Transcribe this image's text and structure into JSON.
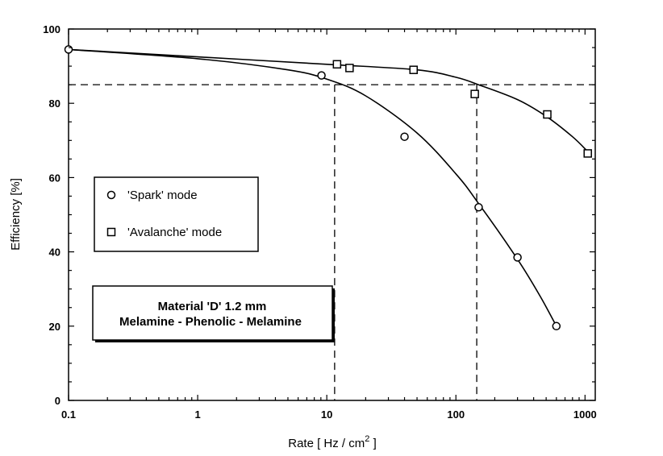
{
  "chart_data": {
    "type": "scatter",
    "x_scale": "log",
    "xlim": [
      0.1,
      1200
    ],
    "ylim": [
      0,
      100
    ],
    "grid": false,
    "xlabel": "Rate [ Hz / cm",
    "xlabel_sup": "2",
    "xlabel_end": " ]",
    "ylabel": "Efficiency [%]",
    "x_ticks": [
      0.1,
      1,
      10,
      100,
      1000
    ],
    "x_tick_labels": [
      "0.1",
      "1",
      "10",
      "100",
      "1000"
    ],
    "y_ticks": [
      0,
      20,
      40,
      60,
      80,
      100
    ],
    "y_tick_labels": [
      "0",
      "20",
      "40",
      "60",
      "80",
      "100"
    ],
    "series": [
      {
        "name": "'Spark' mode",
        "marker": "circle",
        "points": [
          [
            0.1,
            94.5
          ],
          [
            9.1,
            87.5
          ],
          [
            40,
            71
          ],
          [
            150,
            52
          ],
          [
            300,
            38.5
          ],
          [
            600,
            20
          ]
        ]
      },
      {
        "name": "'Avalanche' mode",
        "marker": "square",
        "points": [
          [
            12,
            90.5
          ],
          [
            15,
            89.5
          ],
          [
            47,
            89
          ],
          [
            140,
            82.5
          ],
          [
            510,
            77
          ],
          [
            1050,
            66.5
          ]
        ]
      }
    ],
    "fit_curves": [
      {
        "series": "'Spark' mode",
        "points": [
          [
            0.1,
            94.5
          ],
          [
            1,
            92
          ],
          [
            5,
            89
          ],
          [
            10,
            86.5
          ],
          [
            20,
            82
          ],
          [
            50,
            72
          ],
          [
            100,
            61
          ],
          [
            150,
            53
          ],
          [
            300,
            38
          ],
          [
            450,
            28
          ],
          [
            600,
            20
          ]
        ]
      },
      {
        "series": "'Avalanche' mode",
        "points": [
          [
            0.1,
            94.5
          ],
          [
            1,
            92.5
          ],
          [
            10,
            90.5
          ],
          [
            50,
            89
          ],
          [
            100,
            87
          ],
          [
            150,
            85
          ],
          [
            300,
            81
          ],
          [
            500,
            76.5
          ],
          [
            800,
            71
          ],
          [
            1050,
            67
          ]
        ]
      }
    ],
    "reference_lines": [
      {
        "orientation": "horizontal",
        "y": 85,
        "style": "dashed"
      },
      {
        "orientation": "vertical",
        "x": 11.5,
        "style": "dashed"
      },
      {
        "orientation": "vertical",
        "x": 145,
        "style": "dashed"
      }
    ],
    "legend": {
      "placement": "left-middle",
      "entries": [
        {
          "marker": "circle",
          "label": "'Spark' mode"
        },
        {
          "marker": "square",
          "label": "'Avalanche' mode"
        }
      ]
    },
    "annotation": {
      "line1": "Material 'D'  1.2 mm",
      "line2": "Melamine - Phenolic - Melamine"
    }
  }
}
